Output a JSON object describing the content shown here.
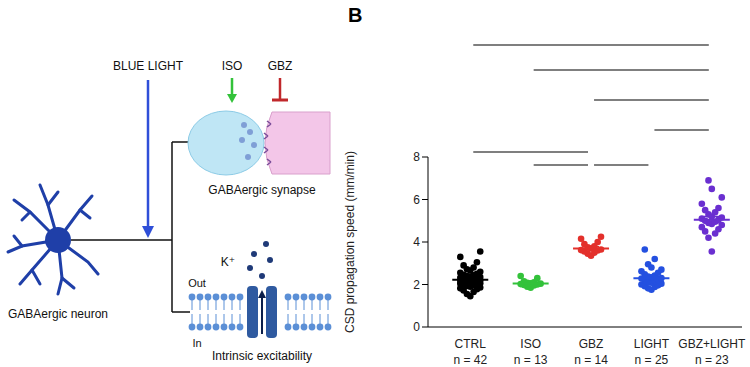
{
  "panel_label": "B",
  "diagram": {
    "blue_light": "BLUE LIGHT",
    "iso": "ISO",
    "gbz": "GBZ",
    "neuron": "GABAergic neuron",
    "synapse": "GABAergic synapse",
    "ion": "K⁺",
    "outside": "Out",
    "inside": "In",
    "membrane": "Intrinsic excitability"
  },
  "chart_data": {
    "type": "scatter",
    "y_label": "CSD propagation speed (mm/min)",
    "categories": [
      "CTRL",
      "ISO",
      "GBZ",
      "LIGHT",
      "GBZ+LIGHT"
    ],
    "n_labels": [
      "n = 42",
      "n = 13",
      "n = 14",
      "n = 25",
      "n = 23"
    ],
    "colors": [
      "#000000",
      "#33c23a",
      "#e3302b",
      "#2450e0",
      "#6a2fd0"
    ],
    "values": [
      [
        1.45,
        1.55,
        1.65,
        1.72,
        1.78,
        1.82,
        1.86,
        1.9,
        1.93,
        1.96,
        1.99,
        2.02,
        2.04,
        2.06,
        2.08,
        2.1,
        2.12,
        2.14,
        2.16,
        2.18,
        2.2,
        2.22,
        2.24,
        2.26,
        2.28,
        2.3,
        2.32,
        2.35,
        2.38,
        2.4,
        2.43,
        2.46,
        2.5,
        2.55,
        2.6,
        2.66,
        2.72,
        2.8,
        2.9,
        3.05,
        3.3,
        3.55
      ],
      [
        1.85,
        1.9,
        1.95,
        1.98,
        2.0,
        2.02,
        2.04,
        2.06,
        2.08,
        2.1,
        2.15,
        2.3,
        2.4
      ],
      [
        3.35,
        3.45,
        3.5,
        3.55,
        3.6,
        3.62,
        3.65,
        3.7,
        3.75,
        3.8,
        3.9,
        4.0,
        4.15,
        4.25
      ],
      [
        1.75,
        1.82,
        1.88,
        1.92,
        1.96,
        2.0,
        2.04,
        2.08,
        2.12,
        2.16,
        2.2,
        2.24,
        2.28,
        2.3,
        2.34,
        2.38,
        2.42,
        2.48,
        2.55,
        2.62,
        2.7,
        2.8,
        2.95,
        3.2,
        3.65
      ],
      [
        3.55,
        4.2,
        4.4,
        4.5,
        4.6,
        4.7,
        4.8,
        4.85,
        4.9,
        4.95,
        5.0,
        5.05,
        5.1,
        5.15,
        5.2,
        5.3,
        5.4,
        5.5,
        5.6,
        5.8,
        6.1,
        6.5,
        6.9
      ]
    ],
    "means": [
      2.22,
      2.05,
      3.7,
      2.3,
      5.05
    ],
    "errors": [
      0.07,
      0.05,
      0.08,
      0.09,
      0.15
    ],
    "ylim": [
      0,
      8
    ],
    "yticks": [
      0,
      2,
      4,
      6,
      8
    ],
    "comparisons": [
      [
        "CTRL",
        "GBZ+LIGHT"
      ],
      [
        "ISO",
        "GBZ+LIGHT"
      ],
      [
        "GBZ",
        "GBZ+LIGHT"
      ],
      [
        "LIGHT",
        "GBZ+LIGHT"
      ],
      [
        "CTRL",
        "GBZ"
      ],
      [
        "ISO",
        "GBZ"
      ],
      [
        "GBZ",
        "LIGHT"
      ]
    ]
  }
}
